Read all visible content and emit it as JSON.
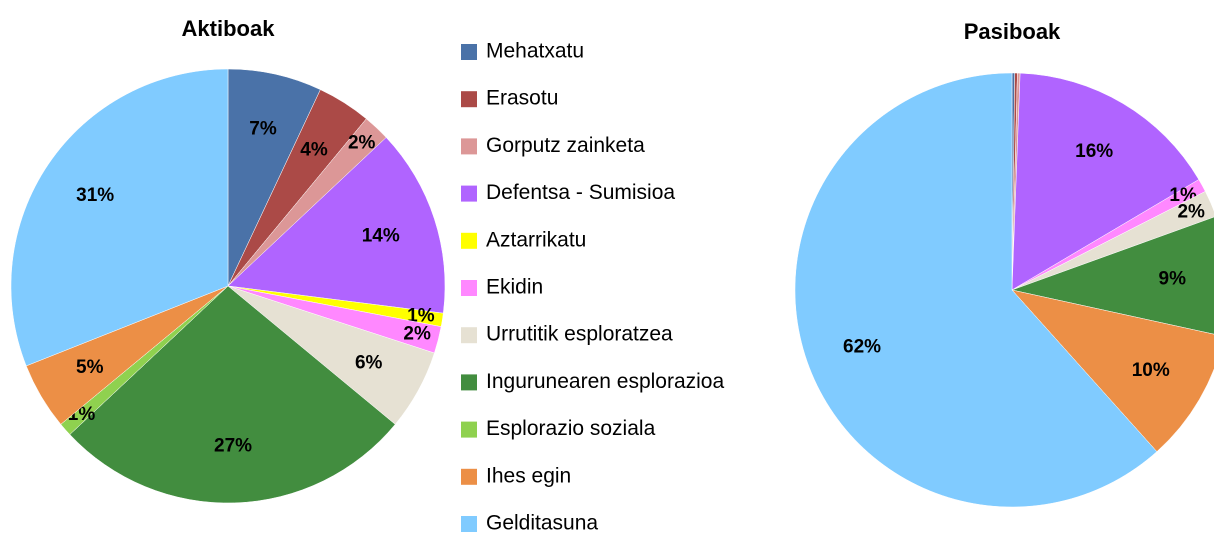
{
  "chart_data": [
    {
      "type": "pie",
      "title": "Aktiboak",
      "categories": [
        "Mehatxatu",
        "Erasotu",
        "Gorputz zainketa",
        "Defentsa - Sumisioa",
        "Aztarrikatu",
        "Ekidin",
        "Urrutitik esploratzea",
        "Ingurunearen esplorazioa",
        "Esplorazio soziala",
        "Ihes egin",
        "Gelditasuna"
      ],
      "values": [
        7,
        4,
        2,
        14,
        1,
        2,
        6,
        27,
        1,
        5,
        31
      ],
      "value_labels": [
        "7%",
        "4%",
        "2%",
        "14%",
        "1%",
        "2%",
        "6%",
        "27%",
        "1%",
        "5%",
        "31%"
      ],
      "colors": [
        "#4a72a8",
        "#ab4a47",
        "#dc9797",
        "#b064ff",
        "#ffff00",
        "#ff88ff",
        "#e6e1d3",
        "#428d3f",
        "#8fd14f",
        "#ec8f46",
        "#80cbff"
      ],
      "legend": "right"
    },
    {
      "type": "pie",
      "title": "Pasiboak",
      "categories": [
        "Mehatxatu",
        "Erasotu",
        "Gorputz zainketa",
        "Defentsa - Sumisioa",
        "Aztarrikatu",
        "Ekidin",
        "Urrutitik esploratzea",
        "Ingurunearen esplorazioa",
        "Esplorazio soziala",
        "Ihes egin",
        "Gelditasuna"
      ],
      "values": [
        0.2,
        0.2,
        0.2,
        16,
        0,
        1,
        2,
        9,
        0,
        10,
        62
      ],
      "value_labels": [
        null,
        null,
        null,
        "16%",
        null,
        "1%",
        "2%",
        "9%",
        null,
        "10%",
        "62%"
      ],
      "colors": [
        "#4a72a8",
        "#ab4a47",
        "#dc9797",
        "#b064ff",
        "#ffff00",
        "#ff88ff",
        "#e6e1d3",
        "#428d3f",
        "#8fd14f",
        "#ec8f46",
        "#80cbff"
      ]
    }
  ]
}
